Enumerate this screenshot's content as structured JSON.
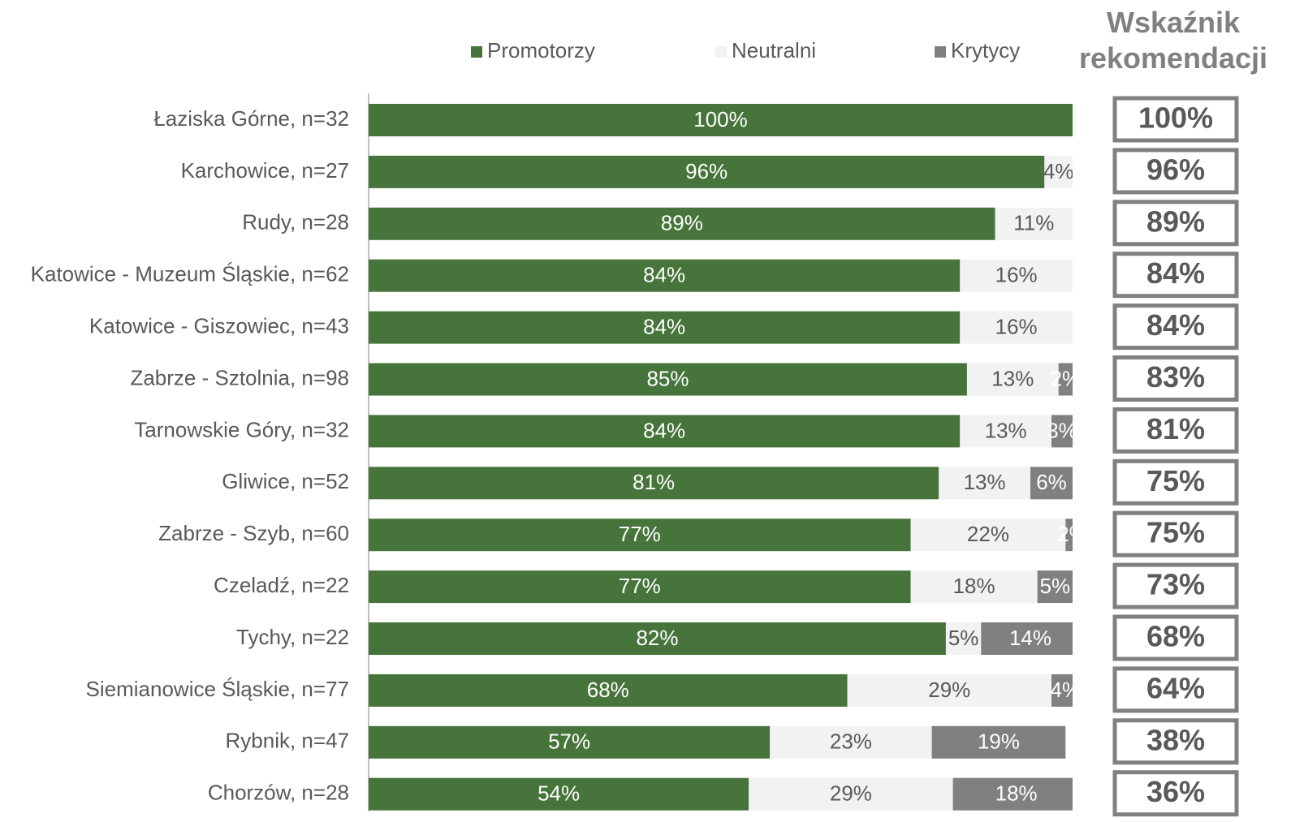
{
  "chart_data": {
    "type": "bar",
    "orientation": "horizontal",
    "stacked": true,
    "legend": "top",
    "categories": [
      "Łaziska Górne, n=32",
      "Karchowice, n=27",
      "Rudy, n=28",
      "Katowice - Muzeum Śląskie, n=62",
      "Katowice - Giszowiec, n=43",
      "Zabrze - Sztolnia, n=98",
      "Tarnowskie Góry, n=32",
      "Gliwice, n=52",
      "Zabrze - Szyb, n=60",
      "Czeladź, n=22",
      "Tychy, n=22",
      "Siemianowice Śląskie, n=77",
      "Rybnik, n=47",
      "Chorzów, n=28"
    ],
    "xlim": [
      0,
      100
    ],
    "series": [
      {
        "name": "Promotorzy",
        "color": "#46743a",
        "values": [
          100,
          96,
          89,
          84,
          84,
          85,
          84,
          81,
          77,
          77,
          82,
          68,
          57,
          54
        ],
        "value_labels": [
          "100%",
          "96%",
          "89%",
          "84%",
          "84%",
          "85%",
          "84%",
          "81%",
          "77%",
          "77%",
          "82%",
          "68%",
          "57%",
          "54%"
        ]
      },
      {
        "name": "Neutralni",
        "color": "#f2f2f2",
        "values": [
          0,
          4,
          11,
          16,
          16,
          13,
          13,
          13,
          22,
          18,
          5,
          29,
          23,
          29
        ],
        "value_labels": [
          null,
          "4%",
          "11%",
          "16%",
          "16%",
          "13%",
          "13%",
          "13%",
          "22%",
          "18%",
          "5%",
          "29%",
          "23%",
          "29%"
        ]
      },
      {
        "name": "Krytycy",
        "color": "#808080",
        "values": [
          0,
          0,
          0,
          0,
          0,
          2,
          3,
          6,
          2,
          5,
          14,
          4,
          19,
          18
        ],
        "value_labels": [
          null,
          null,
          null,
          null,
          null,
          "2%",
          "3%",
          "6%",
          "2%",
          "5%",
          "14%",
          "4%",
          "19%",
          "18%"
        ]
      }
    ],
    "nps": {
      "title": "Wskaźnik rekomendacji",
      "values": [
        100,
        96,
        89,
        84,
        84,
        83,
        81,
        75,
        75,
        73,
        68,
        64,
        38,
        36
      ],
      "value_labels": [
        "100%",
        "96%",
        "89%",
        "84%",
        "84%",
        "83%",
        "81%",
        "75%",
        "75%",
        "73%",
        "68%",
        "64%",
        "38%",
        "36%"
      ]
    }
  }
}
